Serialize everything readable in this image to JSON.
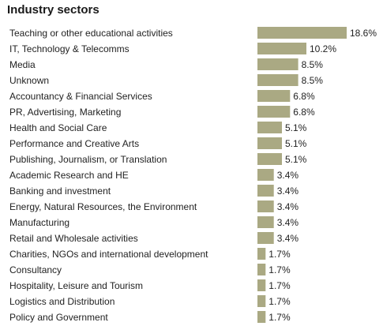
{
  "chart_data": {
    "type": "bar",
    "orientation": "horizontal",
    "title": "Industry sectors",
    "bar_color": "#aaa983",
    "categories": [
      "Teaching or other educational activities",
      "IT, Technology & Telecomms",
      "Media",
      "Unknown",
      "Accountancy & Financial Services",
      "PR, Advertising, Marketing",
      "Health and Social Care",
      "Performance and Creative Arts",
      "Publishing, Journalism, or Translation",
      "Academic Research and HE",
      "Banking and investment",
      "Energy, Natural Resources, the Environment",
      "Manufacturing",
      "Retail and Wholesale activities",
      "Charities, NGOs and international development",
      "Consultancy",
      "Hospitality, Leisure and Tourism",
      "Logistics and Distribution",
      "Policy and Government"
    ],
    "values": [
      18.6,
      10.2,
      8.5,
      8.5,
      6.8,
      6.8,
      5.1,
      5.1,
      5.1,
      3.4,
      3.4,
      3.4,
      3.4,
      3.4,
      1.7,
      1.7,
      1.7,
      1.7,
      1.7
    ],
    "value_labels": [
      "18.6%",
      "10.2%",
      "8.5%",
      "8.5%",
      "6.8%",
      "6.8%",
      "5.1%",
      "5.1%",
      "5.1%",
      "3.4%",
      "3.4%",
      "3.4%",
      "3.4%",
      "3.4%",
      "1.7%",
      "1.7%",
      "1.7%",
      "1.7%",
      "1.7%"
    ],
    "xlim": [
      0,
      18.6
    ]
  }
}
